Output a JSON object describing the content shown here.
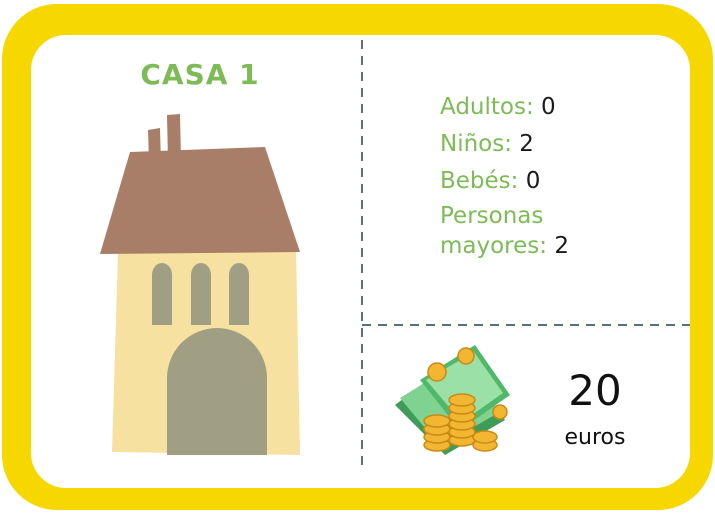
{
  "title": "CASA 1",
  "fields": [
    {
      "label": "Adultos:",
      "value": "0"
    },
    {
      "label": "Niños:",
      "value": "2"
    },
    {
      "label": "Bebés:",
      "value": "0"
    },
    {
      "label": "Personas mayores:",
      "value": "2"
    }
  ],
  "price": {
    "amount": "20",
    "unit": "euros"
  }
}
